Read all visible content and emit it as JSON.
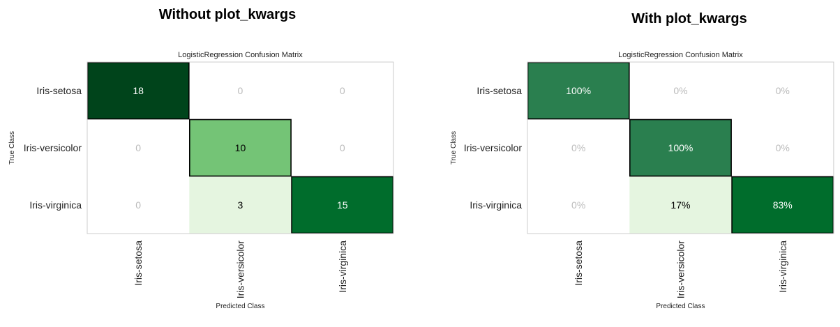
{
  "suptitles": {
    "left": "Without plot_kwargs",
    "right": "With plot_kwargs"
  },
  "chart_data": [
    {
      "type": "heatmap",
      "title": "LogisticRegression Confusion Matrix",
      "xlabel": "Predicted Class",
      "ylabel": "True Class",
      "rows": [
        "Iris-setosa",
        "Iris-versicolor",
        "Iris-virginica"
      ],
      "columns": [
        "Iris-setosa",
        "Iris-versicolor",
        "Iris-virginica"
      ],
      "values": [
        [
          18,
          0,
          0
        ],
        [
          0,
          10,
          0
        ],
        [
          0,
          3,
          15
        ]
      ],
      "labels": [
        [
          "18",
          "0",
          "0"
        ],
        [
          "0",
          "10",
          "0"
        ],
        [
          "0",
          "3",
          "15"
        ]
      ],
      "colors": [
        [
          "#00441b",
          null,
          null
        ],
        [
          null,
          "#74c476",
          null
        ],
        [
          null,
          "#e5f5e0",
          "#006d2c"
        ]
      ],
      "label_colors": [
        [
          "#ffffff",
          "#bbbbbb",
          "#bbbbbb"
        ],
        [
          "#bbbbbb",
          "#000000",
          "#bbbbbb"
        ],
        [
          "#bbbbbb",
          "#000000",
          "#ffffff"
        ]
      ],
      "colormap": "Greens"
    },
    {
      "type": "heatmap",
      "title": "LogisticRegression Confusion Matrix",
      "xlabel": "Predicted Class",
      "ylabel": "True Class",
      "rows": [
        "Iris-setosa",
        "Iris-versicolor",
        "Iris-virginica"
      ],
      "columns": [
        "Iris-setosa",
        "Iris-versicolor",
        "Iris-virginica"
      ],
      "values": [
        [
          100,
          0,
          0
        ],
        [
          0,
          100,
          0
        ],
        [
          0,
          17,
          83
        ]
      ],
      "labels": [
        [
          "100%",
          "0%",
          "0%"
        ],
        [
          "0%",
          "100%",
          "0%"
        ],
        [
          "0%",
          "17%",
          "83%"
        ]
      ],
      "colors": [
        [
          "#2a7f4f",
          null,
          null
        ],
        [
          null,
          "#2a7f4f",
          null
        ],
        [
          null,
          "#e5f5e0",
          "#006d2c"
        ]
      ],
      "label_colors": [
        [
          "#ffffff",
          "#bbbbbb",
          "#bbbbbb"
        ],
        [
          "#bbbbbb",
          "#ffffff",
          "#bbbbbb"
        ],
        [
          "#bbbbbb",
          "#000000",
          "#ffffff"
        ]
      ],
      "colormap": "Greens"
    }
  ]
}
